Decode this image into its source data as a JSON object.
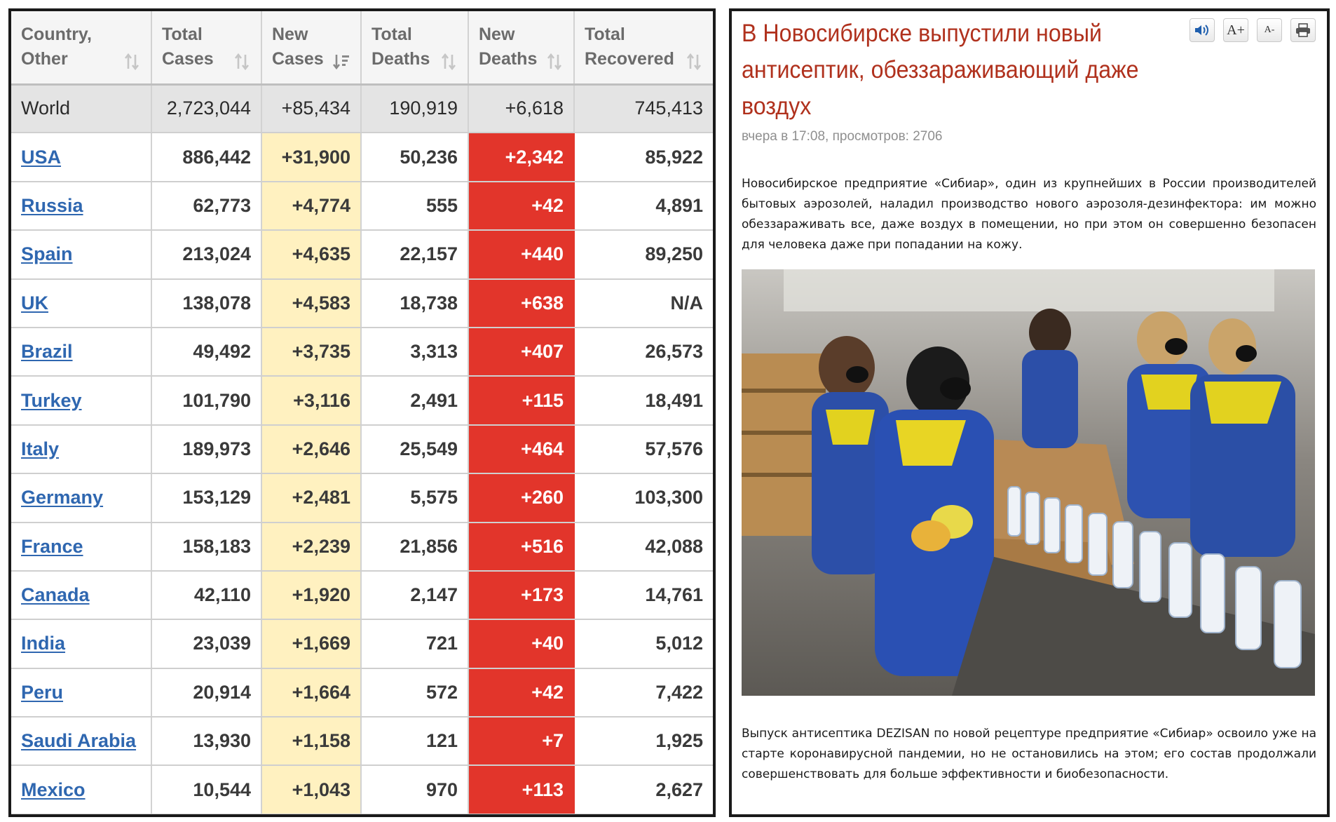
{
  "table": {
    "columns": [
      {
        "line1": "Country,",
        "line2": "Other",
        "sort_icon": "sort-updown-icon"
      },
      {
        "line1": "Total",
        "line2": "Cases",
        "sort_icon": "sort-updown-icon"
      },
      {
        "line1": "New",
        "line2": "Cases",
        "sort_icon": "sort-desc-icon"
      },
      {
        "line1": "Total",
        "line2": "Deaths",
        "sort_icon": "sort-updown-icon"
      },
      {
        "line1": "New",
        "line2": "Deaths",
        "sort_icon": "sort-updown-icon"
      },
      {
        "line1": "Total",
        "line2": "Recovered",
        "sort_icon": "sort-updown-icon"
      }
    ],
    "world": {
      "country": "World",
      "total_cases": "2,723,044",
      "new_cases": "+85,434",
      "total_deaths": "190,919",
      "new_deaths": "+6,618",
      "total_recovered": "745,413"
    },
    "rows": [
      {
        "country": "USA",
        "total_cases": "886,442",
        "new_cases": "+31,900",
        "total_deaths": "50,236",
        "new_deaths": "+2,342",
        "total_recovered": "85,922"
      },
      {
        "country": "Russia",
        "total_cases": "62,773",
        "new_cases": "+4,774",
        "total_deaths": "555",
        "new_deaths": "+42",
        "total_recovered": "4,891"
      },
      {
        "country": "Spain",
        "total_cases": "213,024",
        "new_cases": "+4,635",
        "total_deaths": "22,157",
        "new_deaths": "+440",
        "total_recovered": "89,250"
      },
      {
        "country": "UK",
        "total_cases": "138,078",
        "new_cases": "+4,583",
        "total_deaths": "18,738",
        "new_deaths": "+638",
        "total_recovered": "N/A"
      },
      {
        "country": "Brazil",
        "total_cases": "49,492",
        "new_cases": "+3,735",
        "total_deaths": "3,313",
        "new_deaths": "+407",
        "total_recovered": "26,573"
      },
      {
        "country": "Turkey",
        "total_cases": "101,790",
        "new_cases": "+3,116",
        "total_deaths": "2,491",
        "new_deaths": "+115",
        "total_recovered": "18,491"
      },
      {
        "country": "Italy",
        "total_cases": "189,973",
        "new_cases": "+2,646",
        "total_deaths": "25,549",
        "new_deaths": "+464",
        "total_recovered": "57,576"
      },
      {
        "country": "Germany",
        "total_cases": "153,129",
        "new_cases": "+2,481",
        "total_deaths": "5,575",
        "new_deaths": "+260",
        "total_recovered": "103,300"
      },
      {
        "country": "France",
        "total_cases": "158,183",
        "new_cases": "+2,239",
        "total_deaths": "21,856",
        "new_deaths": "+516",
        "total_recovered": "42,088"
      },
      {
        "country": "Canada",
        "total_cases": "42,110",
        "new_cases": "+1,920",
        "total_deaths": "2,147",
        "new_deaths": "+173",
        "total_recovered": "14,761"
      },
      {
        "country": "India",
        "total_cases": "23,039",
        "new_cases": "+1,669",
        "total_deaths": "721",
        "new_deaths": "+40",
        "total_recovered": "5,012"
      },
      {
        "country": "Peru",
        "total_cases": "20,914",
        "new_cases": "+1,664",
        "total_deaths": "572",
        "new_deaths": "+42",
        "total_recovered": "7,422"
      },
      {
        "country": "Saudi Arabia",
        "total_cases": "13,930",
        "new_cases": "+1,158",
        "total_deaths": "121",
        "new_deaths": "+7",
        "total_recovered": "1,925"
      },
      {
        "country": "Mexico",
        "total_cases": "10,544",
        "new_cases": "+1,043",
        "total_deaths": "970",
        "new_deaths": "+113",
        "total_recovered": "2,627"
      }
    ],
    "colors": {
      "link": "#2f67b0",
      "new_cases_bg": "#fff1c0",
      "new_deaths_bg": "#e2352b",
      "world_bg": "#e4e4e4"
    }
  },
  "article": {
    "title": "В Новосибирске выпустили новый антисептик, обеззараживающий даже воздух",
    "meta": "вчера в 17:08, просмотров: 2706",
    "tools": {
      "speaker": "speaker-icon",
      "font_up": "A+",
      "font_down": "A-",
      "print": "printer-icon"
    },
    "paragraph1": "Новосибирское предприятие «Сибиар», один из крупнейших в России производителей бытовых аэрозолей, наладил производство нового аэрозоля-дезинфектора: им можно обеззараживать все, даже воздух в помещении, но при этом он совершенно безопасен для человека даже при попадании на кожу.",
    "paragraph2": "Выпуск антисептика DEZISAN по новой рецептуре предприятие «Сибиар» освоило уже на старте коронавирусной пандемии, но не остановились на этом; его состав продолжали совершенствовать для больше эффективности и биобезопасности.",
    "photo": {
      "subject": "factory-workers-photo"
    },
    "colors": {
      "title": "#b0311d",
      "meta": "#8f8f8f"
    }
  }
}
